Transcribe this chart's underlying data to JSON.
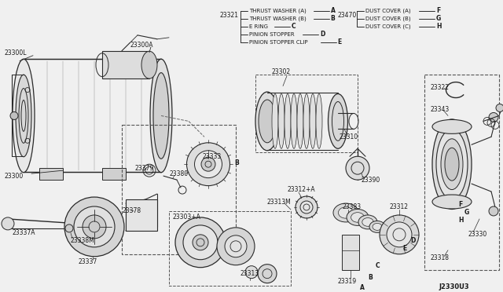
{
  "bg_color": "#f0f0f0",
  "line_color": "#2a2a2a",
  "text_color": "#1a1a1a",
  "diagram_code": "J2330U3",
  "legend_left_ref": "23321",
  "legend_left_items": [
    {
      "label": "THRUST WASHER (A)",
      "letter": "A"
    },
    {
      "label": "THRUST WASHER (B)",
      "letter": "B"
    },
    {
      "label": "E RING",
      "letter": "C"
    },
    {
      "label": "PINION STOPPER",
      "letter": "D"
    },
    {
      "label": "PINION STOPPER CLIP",
      "letter": "E"
    }
  ],
  "legend_right_ref": "23470",
  "legend_right_items": [
    {
      "label": "DUST COVER (A)",
      "letter": "F"
    },
    {
      "label": "DUST COVER (B)",
      "letter": "G"
    },
    {
      "label": "DUST COVER (C)",
      "letter": "H"
    }
  ],
  "figsize": [
    6.4,
    3.72
  ],
  "dpi": 100
}
